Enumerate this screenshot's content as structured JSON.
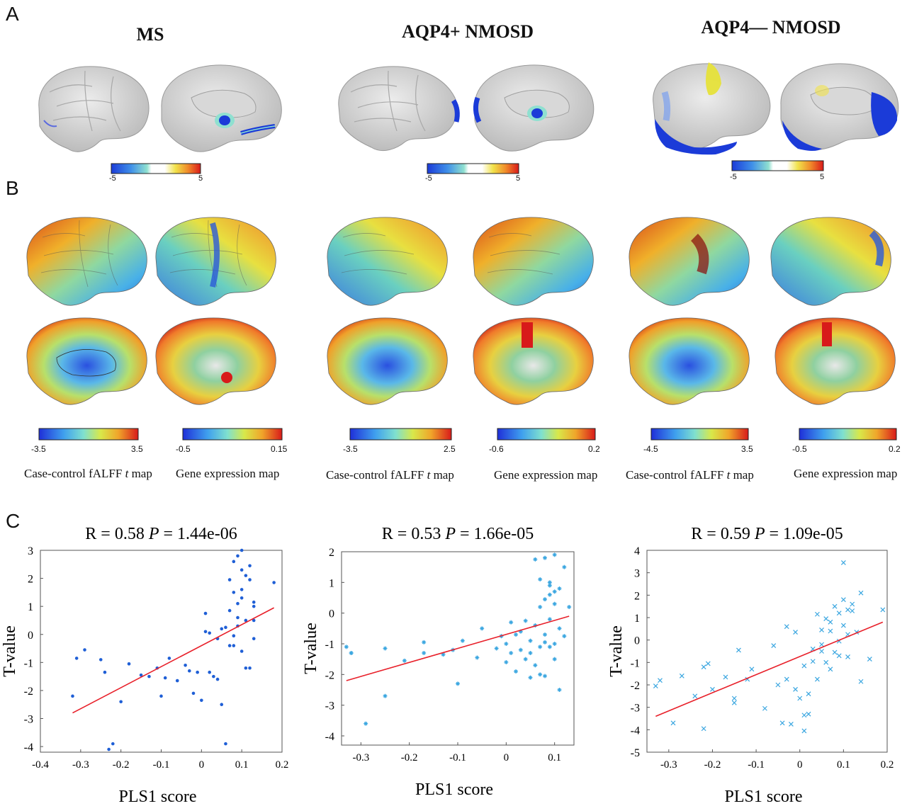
{
  "panel_a": {
    "letter": "A",
    "groups": [
      {
        "title": "MS",
        "cbar_min": "-5",
        "cbar_max": "5"
      },
      {
        "title": "AQP4+ NMOSD",
        "cbar_min": "-5",
        "cbar_max": "5"
      },
      {
        "title": "AQP4— NMOSD",
        "cbar_min": "-5",
        "cbar_max": "5"
      }
    ]
  },
  "panel_b": {
    "letter": "B",
    "groups": [
      {
        "t_caption": "Case-control fALFF",
        "t_italic": "t",
        "t_suffix": "map",
        "t_min": "-3.5",
        "t_max": "3.5",
        "gene_caption": "Gene expression map",
        "gene_min": "-0.5",
        "gene_max": "0.15"
      },
      {
        "t_caption": "Case-control fALFF",
        "t_italic": "t",
        "t_suffix": "map",
        "t_min": "-3.5",
        "t_max": "2.5",
        "gene_caption": "Gene expression map",
        "gene_min": "-0.6",
        "gene_max": "0.2"
      },
      {
        "t_caption": "Case-control fALFF",
        "t_italic": "t",
        "t_suffix": "map",
        "t_min": "-4.5",
        "t_max": "3.5",
        "gene_caption": "Gene expression map",
        "gene_min": "-0.5",
        "gene_max": "0.2"
      }
    ]
  },
  "panel_c": {
    "letter": "C"
  },
  "colors": {
    "line": "#e8202a",
    "point_ms": "#1f5fd6",
    "point_nmosd": "#3aa6e0",
    "brain": "#cfcfcf"
  },
  "chart_data": [
    {
      "type": "scatter",
      "title_r": "R = 0.58",
      "title_p_label": "P",
      "title_p_value": "= 1.44e-06",
      "xlabel": "PLS1 score",
      "ylabel": "T-value",
      "xlim": [
        -0.4,
        0.2
      ],
      "ylim": [
        -4.2,
        3
      ],
      "xticks": [
        "-0.4",
        "-0.3",
        "-0.2",
        "-0.1",
        "0",
        "0.1",
        "0.2"
      ],
      "yticks": [
        "-4",
        "-3",
        "-2",
        "-1",
        "0",
        "1",
        "2",
        "3"
      ],
      "marker": "dot",
      "fit_line": {
        "x": [
          -0.32,
          0.18
        ],
        "y": [
          -2.8,
          0.95
        ]
      },
      "points": [
        [
          -0.32,
          -2.2
        ],
        [
          -0.31,
          -0.85
        ],
        [
          -0.29,
          -0.55
        ],
        [
          -0.25,
          -0.9
        ],
        [
          -0.24,
          -1.35
        ],
        [
          -0.23,
          -4.1
        ],
        [
          -0.22,
          -3.9
        ],
        [
          -0.2,
          -2.4
        ],
        [
          -0.18,
          -1.05
        ],
        [
          -0.15,
          -1.45
        ],
        [
          -0.13,
          -1.5
        ],
        [
          -0.11,
          -1.2
        ],
        [
          -0.1,
          -2.2
        ],
        [
          -0.09,
          -1.55
        ],
        [
          -0.08,
          -0.85
        ],
        [
          -0.06,
          -1.65
        ],
        [
          -0.04,
          -1.1
        ],
        [
          -0.03,
          -1.3
        ],
        [
          -0.02,
          -2.1
        ],
        [
          -0.01,
          -1.35
        ],
        [
          0.0,
          -2.35
        ],
        [
          0.01,
          0.1
        ],
        [
          0.01,
          0.75
        ],
        [
          0.02,
          -1.35
        ],
        [
          0.02,
          0.05
        ],
        [
          0.03,
          -1.5
        ],
        [
          0.04,
          -1.6
        ],
        [
          0.04,
          -0.15
        ],
        [
          0.05,
          -2.5
        ],
        [
          0.05,
          0.2
        ],
        [
          0.06,
          -3.9
        ],
        [
          0.06,
          0.25
        ],
        [
          0.07,
          -0.4
        ],
        [
          0.07,
          0.85
        ],
        [
          0.07,
          1.95
        ],
        [
          0.08,
          -0.4
        ],
        [
          0.08,
          -0.05
        ],
        [
          0.08,
          1.5
        ],
        [
          0.09,
          0.3
        ],
        [
          0.09,
          1.1
        ],
        [
          0.09,
          0.6
        ],
        [
          0.09,
          2.8
        ],
        [
          0.1,
          3.0
        ],
        [
          0.1,
          1.6
        ],
        [
          0.1,
          -0.6
        ],
        [
          0.1,
          1.3
        ],
        [
          0.11,
          0.5
        ],
        [
          0.11,
          -1.2
        ],
        [
          0.11,
          2.1
        ],
        [
          0.12,
          1.95
        ],
        [
          0.12,
          -1.2
        ],
        [
          0.12,
          2.45
        ],
        [
          0.13,
          0.5
        ],
        [
          0.13,
          1.15
        ],
        [
          0.13,
          -0.15
        ],
        [
          0.13,
          1.0
        ],
        [
          0.18,
          1.85
        ],
        [
          0.1,
          2.3
        ],
        [
          0.08,
          2.6
        ]
      ]
    },
    {
      "type": "scatter",
      "title_r": "R = 0.53",
      "title_p_label": "P",
      "title_p_value": "= 1.66e-05",
      "xlabel": "PLS1 score",
      "ylabel": "T-value",
      "xlim": [
        -0.34,
        0.14
      ],
      "ylim": [
        -4.3,
        2
      ],
      "xticks": [
        "-0.3",
        "-0.2",
        "-0.1",
        "0",
        "0.1"
      ],
      "yticks": [
        "-4",
        "-3",
        "-2",
        "-1",
        "0",
        "1",
        "2"
      ],
      "marker": "star",
      "fit_line": {
        "x": [
          -0.33,
          0.13
        ],
        "y": [
          -2.2,
          -0.1
        ]
      },
      "points": [
        [
          -0.33,
          -1.1
        ],
        [
          -0.32,
          -1.3
        ],
        [
          -0.32,
          -1.3
        ],
        [
          -0.29,
          -3.6
        ],
        [
          -0.25,
          -2.7
        ],
        [
          -0.25,
          -1.15
        ],
        [
          -0.21,
          -1.55
        ],
        [
          -0.17,
          -0.95
        ],
        [
          -0.17,
          -1.3
        ],
        [
          -0.13,
          -1.35
        ],
        [
          -0.11,
          -1.2
        ],
        [
          -0.1,
          -2.3
        ],
        [
          -0.09,
          -0.9
        ],
        [
          -0.06,
          -1.45
        ],
        [
          -0.05,
          -0.5
        ],
        [
          -0.02,
          -1.15
        ],
        [
          -0.01,
          -0.75
        ],
        [
          0.0,
          -1.0
        ],
        [
          0.0,
          -1.6
        ],
        [
          0.01,
          -0.3
        ],
        [
          0.01,
          -1.3
        ],
        [
          0.02,
          -1.9
        ],
        [
          0.02,
          -0.7
        ],
        [
          0.03,
          -1.2
        ],
        [
          0.03,
          -0.6
        ],
        [
          0.04,
          -1.5
        ],
        [
          0.04,
          -0.25
        ],
        [
          0.05,
          -2.1
        ],
        [
          0.05,
          -0.9
        ],
        [
          0.05,
          -1.3
        ],
        [
          0.06,
          -1.7
        ],
        [
          0.06,
          1.75
        ],
        [
          0.06,
          -0.4
        ],
        [
          0.07,
          -2.0
        ],
        [
          0.07,
          -1.1
        ],
        [
          0.07,
          0.2
        ],
        [
          0.07,
          1.1
        ],
        [
          0.08,
          0.45
        ],
        [
          0.08,
          -0.7
        ],
        [
          0.08,
          -2.05
        ],
        [
          0.08,
          1.8
        ],
        [
          0.09,
          0.9
        ],
        [
          0.09,
          -0.2
        ],
        [
          0.09,
          0.6
        ],
        [
          0.09,
          1.0
        ],
        [
          0.1,
          -1.0
        ],
        [
          0.1,
          0.7
        ],
        [
          0.1,
          1.9
        ],
        [
          0.1,
          0.3
        ],
        [
          0.11,
          -0.5
        ],
        [
          0.11,
          0.8
        ],
        [
          0.11,
          -2.5
        ],
        [
          0.12,
          1.5
        ],
        [
          0.12,
          -0.75
        ],
        [
          0.13,
          0.2
        ],
        [
          0.1,
          -1.5
        ],
        [
          0.09,
          -1.1
        ],
        [
          0.08,
          -0.95
        ]
      ]
    },
    {
      "type": "scatter",
      "title_r": "R = 0.59",
      "title_p_label": "P",
      "title_p_value": "= 1.09e-05",
      "xlabel": "PLS1 score",
      "ylabel": "T-value",
      "xlim": [
        -0.35,
        0.2
      ],
      "ylim": [
        -5,
        4
      ],
      "xticks": [
        "-0.3",
        "-0.2",
        "-0.1",
        "0",
        "0.1",
        "0.2"
      ],
      "yticks": [
        "-5",
        "-4",
        "-3",
        "-2",
        "-1",
        "0",
        "1",
        "2",
        "3",
        "4"
      ],
      "marker": "cross",
      "fit_line": {
        "x": [
          -0.33,
          0.19
        ],
        "y": [
          -3.4,
          0.8
        ]
      },
      "points": [
        [
          -0.33,
          -2.05
        ],
        [
          -0.32,
          -1.8
        ],
        [
          -0.29,
          -3.7
        ],
        [
          -0.27,
          -1.6
        ],
        [
          -0.24,
          -2.5
        ],
        [
          -0.22,
          -3.95
        ],
        [
          -0.22,
          -1.2
        ],
        [
          -0.21,
          -1.05
        ],
        [
          -0.2,
          -2.2
        ],
        [
          -0.17,
          -1.65
        ],
        [
          -0.15,
          -2.8
        ],
        [
          -0.15,
          -2.6
        ],
        [
          -0.14,
          -0.45
        ],
        [
          -0.12,
          -1.75
        ],
        [
          -0.11,
          -1.3
        ],
        [
          -0.08,
          -3.05
        ],
        [
          -0.06,
          -0.25
        ],
        [
          -0.05,
          -2.0
        ],
        [
          -0.04,
          -3.7
        ],
        [
          -0.03,
          -1.75
        ],
        [
          -0.03,
          0.6
        ],
        [
          -0.02,
          -3.75
        ],
        [
          -0.01,
          -2.2
        ],
        [
          -0.01,
          0.35
        ],
        [
          0.0,
          -2.6
        ],
        [
          0.01,
          -3.35
        ],
        [
          0.01,
          -4.05
        ],
        [
          0.01,
          -1.15
        ],
        [
          0.02,
          -2.4
        ],
        [
          0.02,
          -3.3
        ],
        [
          0.03,
          -0.95
        ],
        [
          0.03,
          -0.4
        ],
        [
          0.04,
          -1.75
        ],
        [
          0.04,
          1.15
        ],
        [
          0.05,
          -0.2
        ],
        [
          0.05,
          0.45
        ],
        [
          0.05,
          -0.5
        ],
        [
          0.06,
          -1.0
        ],
        [
          0.06,
          0.95
        ],
        [
          0.07,
          -1.3
        ],
        [
          0.07,
          0.4
        ],
        [
          0.07,
          0.8
        ],
        [
          0.08,
          -0.55
        ],
        [
          0.08,
          1.5
        ],
        [
          0.09,
          -0.7
        ],
        [
          0.09,
          -0.05
        ],
        [
          0.09,
          1.2
        ],
        [
          0.1,
          3.45
        ],
        [
          0.1,
          1.8
        ],
        [
          0.1,
          0.65
        ],
        [
          0.11,
          1.35
        ],
        [
          0.11,
          -0.75
        ],
        [
          0.11,
          0.25
        ],
        [
          0.12,
          1.6
        ],
        [
          0.12,
          1.3
        ],
        [
          0.13,
          0.35
        ],
        [
          0.14,
          2.1
        ],
        [
          0.14,
          -1.85
        ],
        [
          0.16,
          -0.85
        ],
        [
          0.19,
          1.35
        ]
      ]
    }
  ]
}
